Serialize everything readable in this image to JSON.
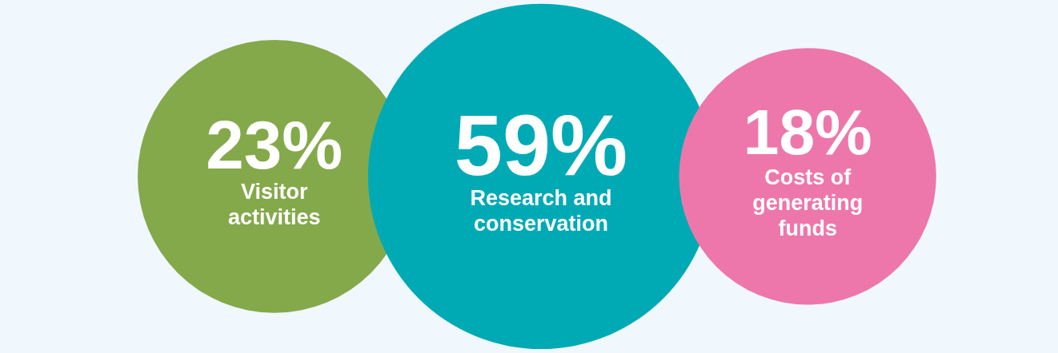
{
  "chart_data": {
    "type": "other",
    "categories": [
      "Visitor activities",
      "Research and conservation",
      "Costs of generating funds"
    ],
    "values": [
      23,
      59,
      18
    ],
    "value_labels": [
      "23%",
      "59%",
      "18%"
    ],
    "colors": [
      "#84a94a",
      "#00aab5",
      "#ed77ab"
    ]
  }
}
